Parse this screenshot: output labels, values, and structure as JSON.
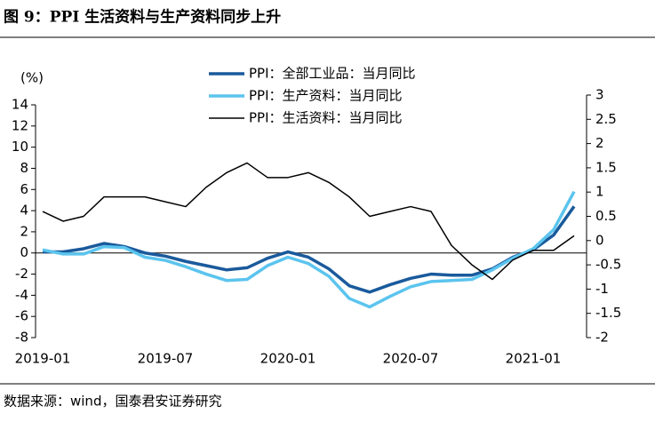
{
  "chart_data": {
    "type": "line",
    "title": "图 9：PPI 生活资料与生产资料同步上升",
    "source": "数据来源：wind，国泰君安证券研究",
    "y_label": "(%)",
    "categories": [
      "2019-01",
      null,
      null,
      null,
      null,
      null,
      "2019-07",
      null,
      null,
      null,
      null,
      null,
      "2020-01",
      null,
      null,
      null,
      null,
      null,
      "2020-07",
      null,
      null,
      null,
      null,
      null,
      "2021-01",
      null,
      null
    ],
    "series": [
      {
        "name": "PPI：全部工业品：当月同比",
        "color": "#1a5a9c",
        "width": 3.5,
        "axis": "y",
        "values": [
          0.1,
          0.1,
          0.4,
          0.9,
          0.6,
          0,
          -0.3,
          -0.8,
          -1.2,
          -1.6,
          -1.4,
          -0.5,
          0.1,
          -0.4,
          -1.5,
          -3.1,
          -3.7,
          -3.0,
          -2.4,
          -2.0,
          -2.1,
          -2.1,
          -1.5,
          -0.4,
          0.3,
          1.7,
          4.4
        ]
      },
      {
        "name": "PPI：生产资料：当月同比",
        "color": "#5bc4ee",
        "width": 3.5,
        "axis": "y",
        "values": [
          0.3,
          -0.1,
          -0.1,
          0.6,
          0.5,
          -0.4,
          -0.7,
          -1.3,
          -2.0,
          -2.6,
          -2.5,
          -1.2,
          -0.4,
          -1.0,
          -2.2,
          -4.3,
          -5.1,
          -4.1,
          -3.2,
          -2.7,
          -2.6,
          -2.5,
          -1.6,
          -0.5,
          0.4,
          2.2,
          5.8
        ]
      },
      {
        "name": "PPI：生活资料：当月同比",
        "color": "#000000",
        "width": 1.5,
        "axis": "y2",
        "values": [
          0.6,
          0.4,
          0.5,
          0.9,
          0.9,
          0.9,
          0.8,
          0.7,
          1.1,
          1.4,
          1.6,
          1.3,
          1.3,
          1.4,
          1.2,
          0.9,
          0.5,
          0.6,
          0.7,
          0.6,
          -0.1,
          -0.5,
          -0.8,
          -0.4,
          -0.2,
          -0.2,
          0.1
        ]
      }
    ],
    "ylim": [
      -8,
      14
    ],
    "yticks": [
      -8,
      -6,
      -4,
      -2,
      0,
      2,
      4,
      6,
      8,
      10,
      12,
      14
    ],
    "y2lim": [
      -2,
      3
    ],
    "y2ticks": [
      -2,
      -1.5,
      -1,
      -0.5,
      0,
      0.5,
      1,
      1.5,
      2,
      2.5,
      3
    ],
    "legend": "top"
  }
}
